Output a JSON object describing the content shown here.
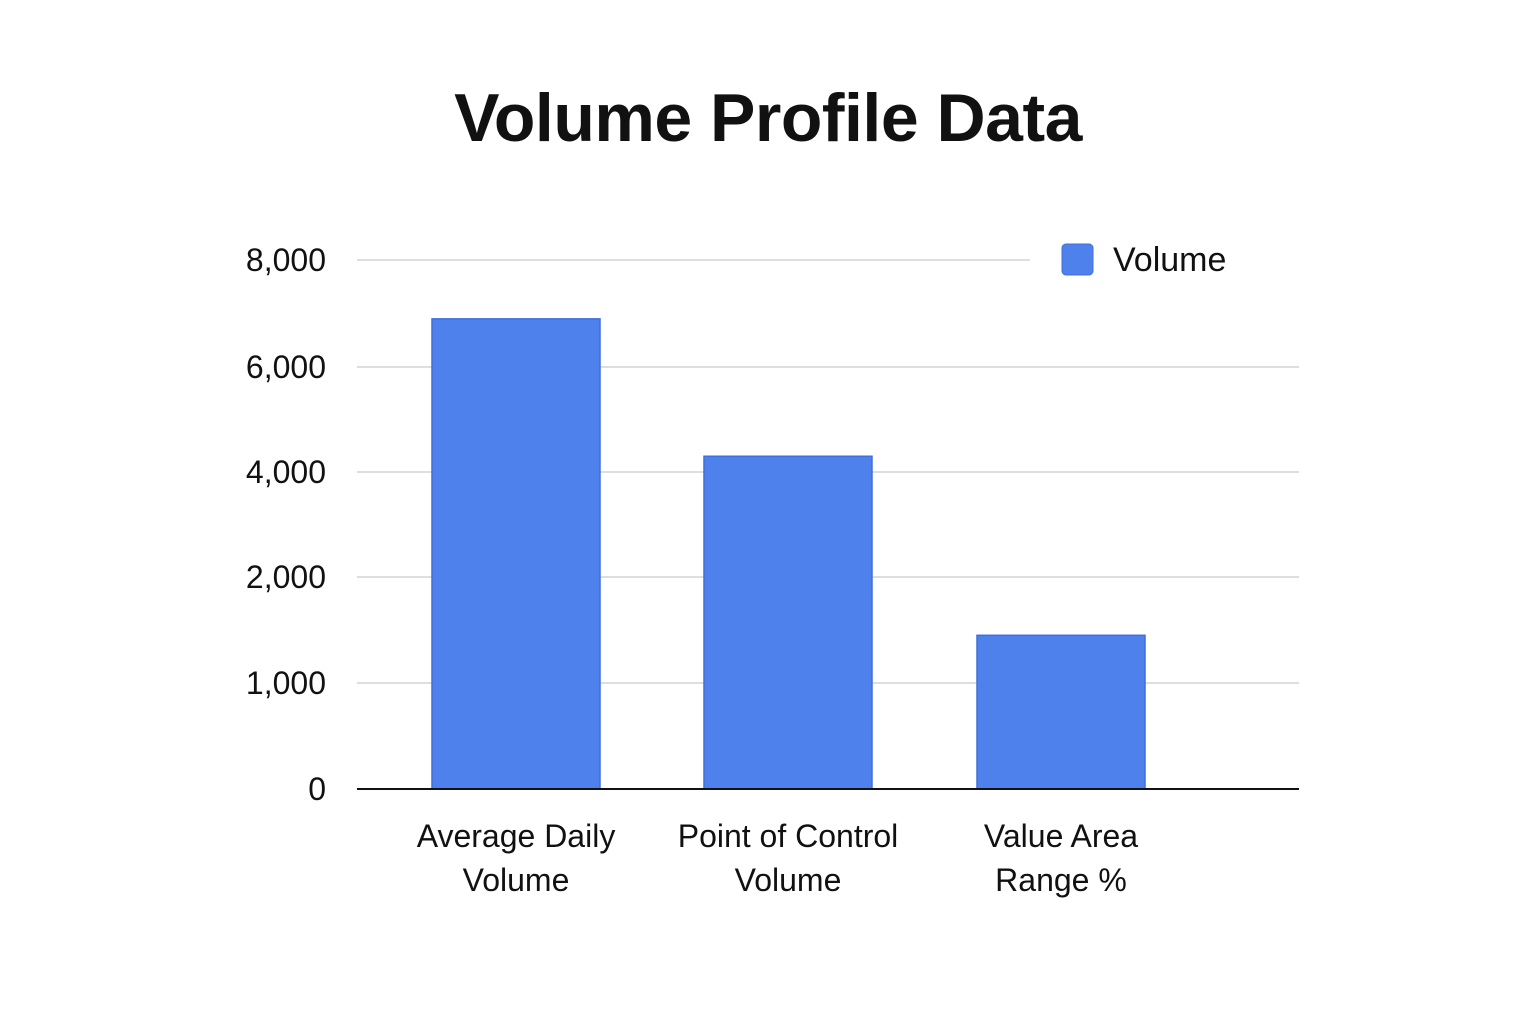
{
  "chart_data": {
    "type": "bar",
    "title": "Volume Profile Data",
    "categories": [
      [
        "Average Daily",
        "Volume"
      ],
      [
        "Point of Control",
        "Volume"
      ],
      [
        "Value Area",
        "Range %"
      ]
    ],
    "series": [
      {
        "name": "Volume",
        "values": [
          6900,
          4300,
          1450
        ],
        "color": "#4f81ec"
      }
    ],
    "y_ticks": [
      {
        "value": 0,
        "label": "0"
      },
      {
        "value": 1000,
        "label": "1,000"
      },
      {
        "value": 2000,
        "label": "2,000"
      },
      {
        "value": 4000,
        "label": "4,000"
      },
      {
        "value": 6000,
        "label": "6,000"
      },
      {
        "value": 8000,
        "label": "8,000"
      }
    ],
    "xlabel": "",
    "ylabel": "",
    "grid": true,
    "legend_position": "top-right"
  }
}
